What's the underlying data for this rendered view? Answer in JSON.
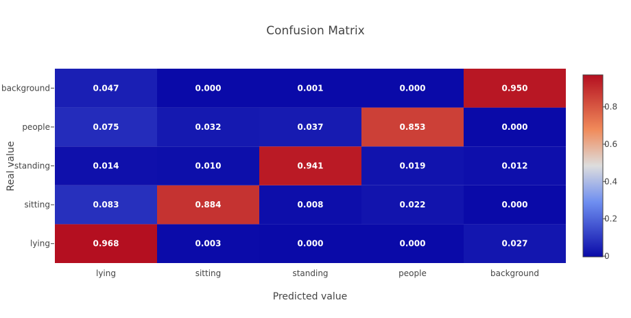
{
  "chart_data": {
    "type": "heatmap",
    "title": "Confusion Matrix",
    "xlabel": "Predicted value",
    "ylabel": "Real value",
    "x_categories": [
      "lying",
      "sitting",
      "standing",
      "people",
      "background"
    ],
    "y_categories": [
      "lying",
      "sitting",
      "standing",
      "people",
      "background"
    ],
    "values": [
      [
        0.968,
        0.003,
        0.0,
        0.0,
        0.027
      ],
      [
        0.083,
        0.884,
        0.008,
        0.022,
        0.0
      ],
      [
        0.014,
        0.01,
        0.941,
        0.019,
        0.012
      ],
      [
        0.075,
        0.032,
        0.037,
        0.853,
        0.0
      ],
      [
        0.047,
        0.0,
        0.001,
        0.0,
        0.95
      ]
    ],
    "labels": [
      [
        "0.968",
        "0.003",
        "0.000",
        "0.000",
        "0.027"
      ],
      [
        "0.083",
        "0.884",
        "0.008",
        "0.022",
        "0.000"
      ],
      [
        "0.014",
        "0.010",
        "0.941",
        "0.019",
        "0.012"
      ],
      [
        "0.075",
        "0.032",
        "0.037",
        "0.853",
        "0.000"
      ],
      [
        "0.047",
        "0.000",
        "0.001",
        "0.000",
        "0.950"
      ]
    ],
    "zlim": [
      0,
      0.968
    ],
    "colorscale": [
      [
        "#0a0aa8",
        0
      ],
      [
        "#6e8ef0",
        0.3
      ],
      [
        "#dddddd",
        0.5
      ],
      [
        "#f08a5a",
        0.7
      ],
      [
        "#b40f20",
        1
      ]
    ],
    "colorbar_ticks": [
      "0",
      "0.2",
      "0.4",
      "0.6",
      "0.8"
    ],
    "colorbar_tick_values": [
      0,
      0.2,
      0.4,
      0.6,
      0.8
    ]
  }
}
